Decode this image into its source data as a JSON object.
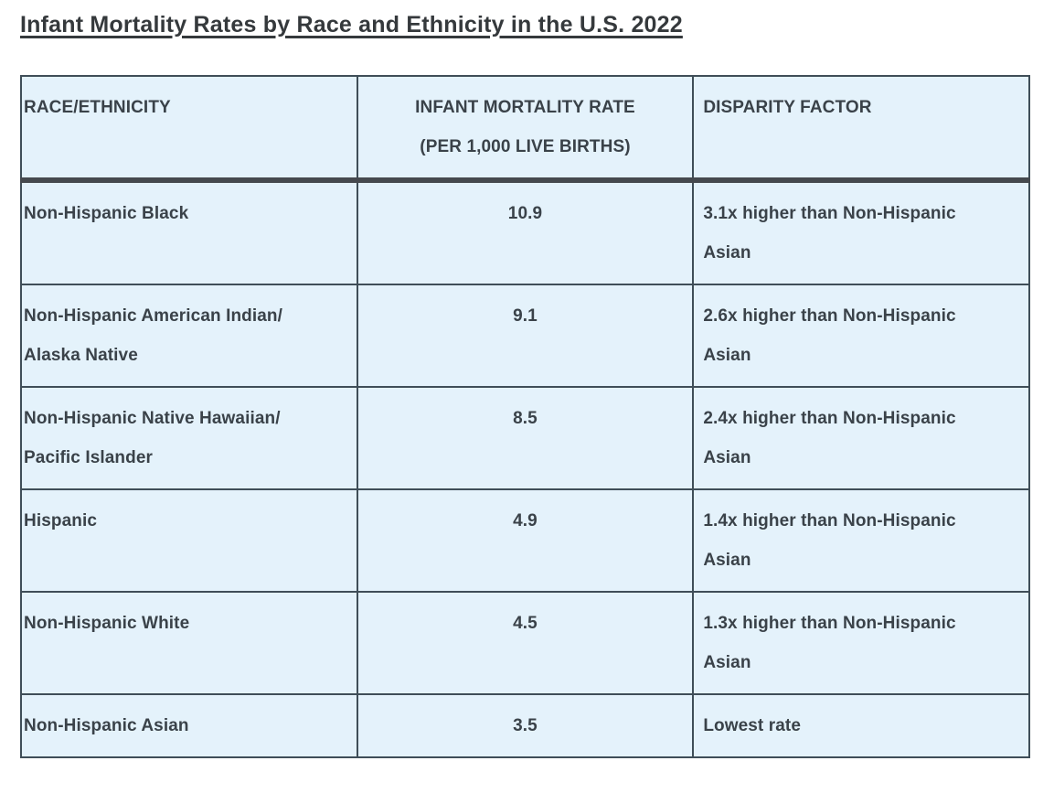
{
  "title": "Infant Mortality Rates by Race and Ethnicity in the U.S. 2022",
  "table": {
    "columns": [
      {
        "label": "RACE/ETHNICITY"
      },
      {
        "label": "INFANT MORTALITY RATE\n(PER 1,000 LIVE BIRTHS)"
      },
      {
        "label": "DISPARITY FACTOR"
      }
    ],
    "rows": [
      {
        "race": "Non-Hispanic Black",
        "rate": "10.9",
        "disparity": "3.1x higher than Non-Hispanic\nAsian"
      },
      {
        "race": "Non-Hispanic American Indian/\nAlaska Native",
        "rate": "9.1",
        "disparity": "2.6x higher than Non-Hispanic\nAsian"
      },
      {
        "race": "Non-Hispanic Native Hawaiian/\nPacific Islander",
        "rate": "8.5",
        "disparity": "2.4x higher than Non-Hispanic\nAsian"
      },
      {
        "race": "Hispanic",
        "rate": "4.9",
        "disparity": "1.4x higher than Non-Hispanic\nAsian"
      },
      {
        "race": "Non-Hispanic White",
        "rate": "4.5",
        "disparity": "1.3x higher than Non-Hispanic\nAsian"
      },
      {
        "race": "Non-Hispanic Asian",
        "rate": "3.5",
        "disparity": "Lowest rate"
      }
    ]
  },
  "chart_data": {
    "type": "table",
    "title": "Infant Mortality Rates by Race and Ethnicity in the U.S. 2022",
    "categories": [
      "Non-Hispanic Black",
      "Non-Hispanic American Indian/Alaska Native",
      "Non-Hispanic Native Hawaiian/Pacific Islander",
      "Hispanic",
      "Non-Hispanic White",
      "Non-Hispanic Asian"
    ],
    "values": [
      10.9,
      9.1,
      8.5,
      4.9,
      4.5,
      3.5
    ],
    "value_label": "Infant mortality rate per 1,000 live births",
    "disparity_factors": [
      "3.1x higher than Non-Hispanic Asian",
      "2.6x higher than Non-Hispanic Asian",
      "2.4x higher than Non-Hispanic Asian",
      "1.4x higher than Non-Hispanic Asian",
      "1.3x higher than Non-Hispanic Asian",
      "Lowest rate"
    ]
  },
  "colors": {
    "page_background": "#ffffff",
    "cell_background": "#e4f2fb",
    "thin_border": "#3f4e58",
    "thick_header_border": "#45494e",
    "text": "#3a4249",
    "title_text": "#35393c"
  }
}
